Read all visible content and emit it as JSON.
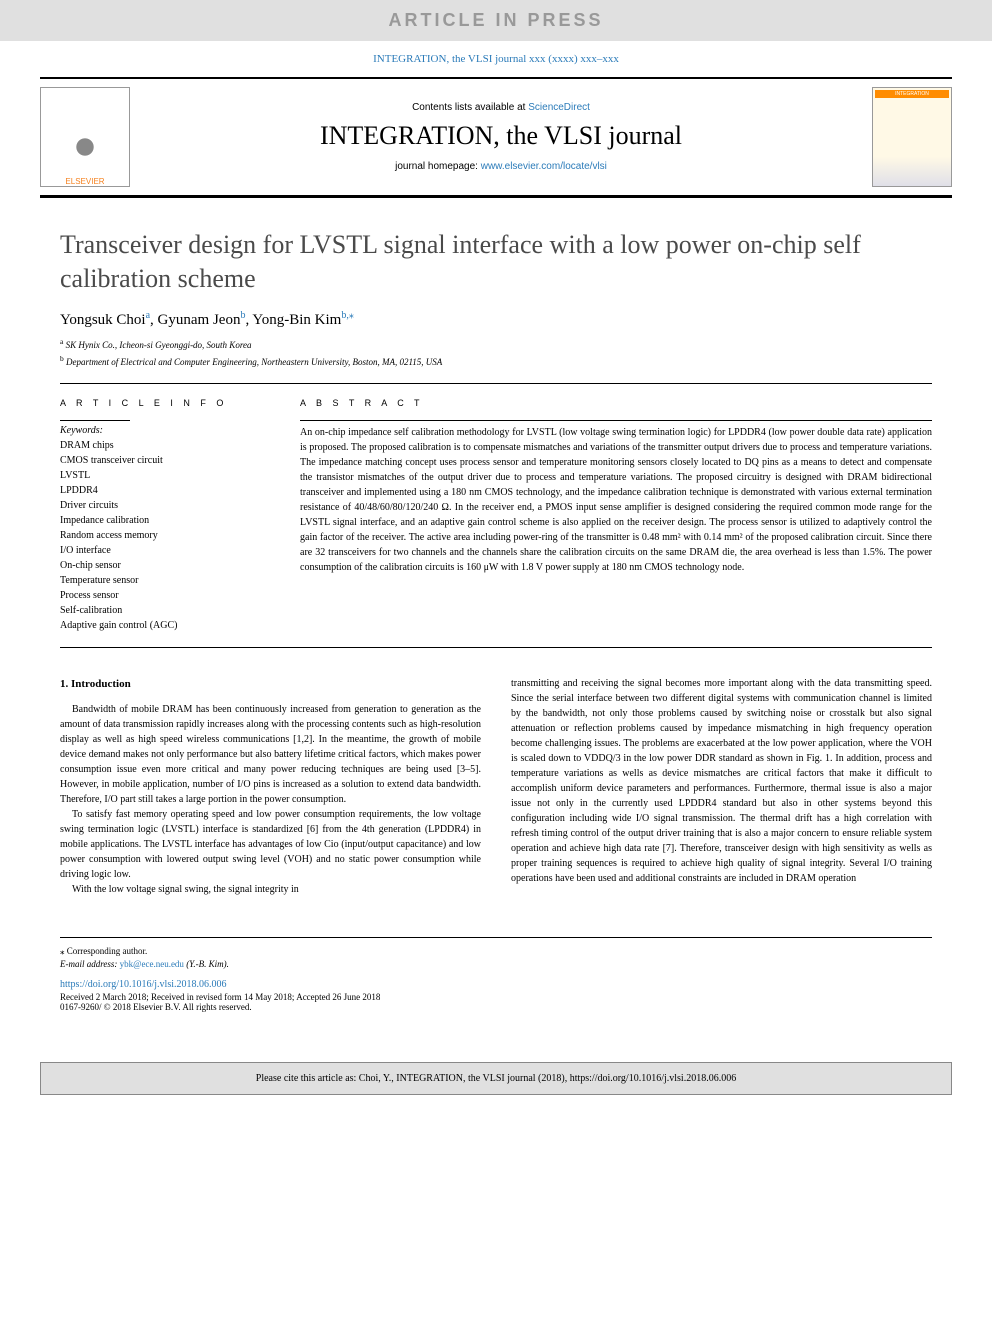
{
  "press_banner": "ARTICLE IN PRESS",
  "journal_ref_line": "INTEGRATION, the VLSI journal xxx (xxxx) xxx–xxx",
  "header": {
    "contents_prefix": "Contents lists available at ",
    "contents_link_text": "ScienceDirect",
    "journal_name": "INTEGRATION, the VLSI journal",
    "homepage_prefix": "journal homepage: ",
    "homepage_link_text": "www.elsevier.com/locate/vlsi",
    "publisher_name": "ELSEVIER",
    "cover_badge": "INTEGRATION"
  },
  "article": {
    "title": "Transceiver design for LVSTL signal interface with a low power on-chip self calibration scheme",
    "author1_name": "Yongsuk Choi",
    "author1_sup": "a",
    "author2_name": "Gyunam Jeon",
    "author2_sup": "b",
    "author3_name": "Yong-Bin Kim",
    "author3_sup": "b,",
    "author3_star": "⁎",
    "aff_a_sup": "a",
    "aff_a": "SK Hynix Co., Icheon-si Gyeonggi-do, South Korea",
    "aff_b_sup": "b",
    "aff_b": "Department of Electrical and Computer Engineering, Northeastern University, Boston, MA, 02115, USA"
  },
  "info": {
    "header": "A R T I C L E  I N F O",
    "keywords_label": "Keywords:",
    "keywords": [
      "DRAM chips",
      "CMOS transceiver circuit",
      "LVSTL",
      "LPDDR4",
      "Driver circuits",
      "Impedance calibration",
      "Random access memory",
      "I/O interface",
      "On-chip sensor",
      "Temperature sensor",
      "Process sensor",
      "Self-calibration",
      "Adaptive gain control (AGC)"
    ]
  },
  "abstract": {
    "header": "A B S T R A C T",
    "text": "An on-chip impedance self calibration methodology for LVSTL (low voltage swing termination logic) for LPDDR4 (low power double data rate) application is proposed. The proposed calibration is to compensate mismatches and variations of the transmitter output drivers due to process and temperature variations. The impedance matching concept uses process sensor and temperature monitoring sensors closely located to DQ pins as a means to detect and compensate the transistor mismatches of the output driver due to process and temperature variations. The proposed circuitry is designed with DRAM bidirectional transceiver and implemented using a 180 nm CMOS technology, and the impedance calibration technique is demonstrated with various external termination resistance of 40/48/60/80/120/240 Ω. In the receiver end, a PMOS input sense amplifier is designed considering the required common mode range for the LVSTL signal interface, and an adaptive gain control scheme is also applied on the receiver design. The process sensor is utilized to adaptively control the gain factor of the receiver. The active area including power-ring of the transmitter is 0.48 mm² with 0.14 mm² of the proposed calibration circuit. Since there are 32 transceivers for two channels and the channels share the calibration circuits on the same DRAM die, the area overhead is less than 1.5%. The power consumption of the calibration circuits is 160 μW with 1.8 V power supply at 180 nm CMOS technology node."
  },
  "body": {
    "section1_heading": "1. Introduction",
    "col1_para1": "Bandwidth of mobile DRAM has been continuously increased from generation to generation as the amount of data transmission rapidly increases along with the processing contents such as high-resolution display as well as high speed wireless communications [1,2]. In the meantime, the growth of mobile device demand makes not only performance but also battery lifetime critical factors, which makes power consumption issue even more critical and many power reducing techniques are being used [3–5]. However, in mobile application, number of I/O pins is increased as a solution to extend data bandwidth. Therefore, I/O part still takes a large portion in the power consumption.",
    "col1_para2": "To satisfy fast memory operating speed and low power consumption requirements, the low voltage swing termination logic (LVSTL) interface is standardized [6] from the 4th generation (LPDDR4) in mobile applications. The LVSTL interface has advantages of low Cio (input/output capacitance) and low power consumption with lowered output swing level (VOH) and no static power consumption while driving logic low.",
    "col1_para3": "With the low voltage signal swing, the signal integrity in",
    "col2_para1": "transmitting and receiving the signal becomes more important along with the data transmitting speed. Since the serial interface between two different digital systems with communication channel is limited by the bandwidth, not only those problems caused by switching noise or crosstalk but also signal attenuation or reflection problems caused by impedance mismatching in high frequency operation become challenging issues. The problems are exacerbated at the low power application, where the VOH is scaled down to VDDQ/3 in the low power DDR standard as shown in Fig. 1. In addition, process and temperature variations as wells as device mismatches are critical factors that make it difficult to accomplish uniform device parameters and performances. Furthermore, thermal issue is also a major issue not only in the currently used LPDDR4 standard but also in other systems beyond this configuration including wide I/O signal transmission. The thermal drift has a high correlation with refresh timing control of the output driver training that is also a major concern to ensure reliable system operation and achieve high data rate [7]. Therefore, transceiver design with high sensitivity as wells as proper training sequences is required to achieve high quality of signal integrity. Several I/O training operations have been used and additional constraints are included in DRAM operation"
  },
  "footer": {
    "corr_author": "⁎ Corresponding author.",
    "email_label": "E-mail address: ",
    "email": "ybk@ece.neu.edu",
    "email_suffix": " (Y.-B. Kim).",
    "doi": "https://doi.org/10.1016/j.vlsi.2018.06.006",
    "received": "Received 2 March 2018; Received in revised form 14 May 2018; Accepted 26 June 2018",
    "copyright": "0167-9260/ © 2018 Elsevier B.V. All rights reserved."
  },
  "cite_box": "Please cite this article as: Choi, Y., INTEGRATION, the VLSI journal (2018), https://doi.org/10.1016/j.vlsi.2018.06.006",
  "colors": {
    "link_blue": "#2b7bb9",
    "banner_bg": "#e0e0e0",
    "banner_text": "#999999",
    "publisher_orange": "#f58220"
  }
}
